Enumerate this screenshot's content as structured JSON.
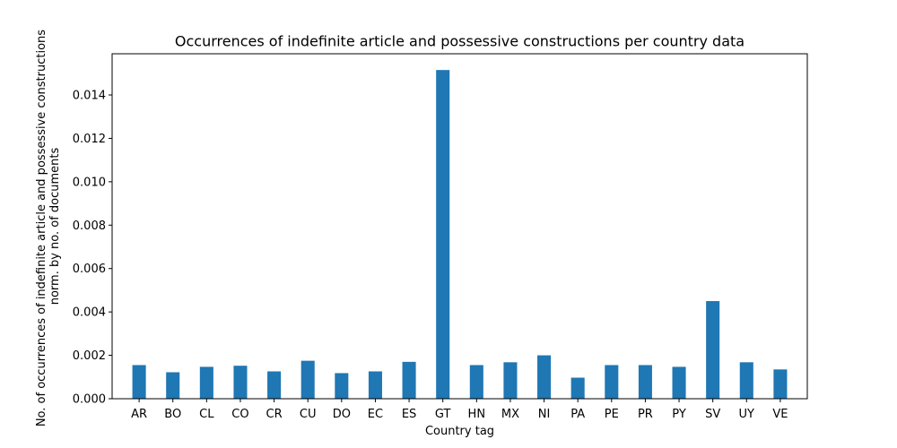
{
  "chart_data": {
    "type": "bar",
    "title": "Occurrences of indefinite article and possessive constructions per country data",
    "xlabel": "Country tag",
    "ylabel_lines": [
      "No. of occurrences of indefinite article and possessive constructions",
      "norm. by no. of documents"
    ],
    "categories": [
      "AR",
      "BO",
      "CL",
      "CO",
      "CR",
      "CU",
      "DO",
      "EC",
      "ES",
      "GT",
      "HN",
      "MX",
      "NI",
      "PA",
      "PE",
      "PR",
      "PY",
      "SV",
      "UY",
      "VE"
    ],
    "values": [
      0.00155,
      0.00122,
      0.00147,
      0.00152,
      0.00126,
      0.00175,
      0.00118,
      0.00126,
      0.0017,
      0.01515,
      0.00155,
      0.00168,
      0.002,
      0.00097,
      0.00155,
      0.00155,
      0.00147,
      0.0045,
      0.00168,
      0.00135
    ],
    "ylim": [
      0,
      0.0159
    ],
    "yticks": [
      "0.000",
      "0.002",
      "0.004",
      "0.006",
      "0.008",
      "0.010",
      "0.012",
      "0.014"
    ],
    "bar_color": "#1f77b4",
    "grid": false,
    "legend": "none"
  }
}
